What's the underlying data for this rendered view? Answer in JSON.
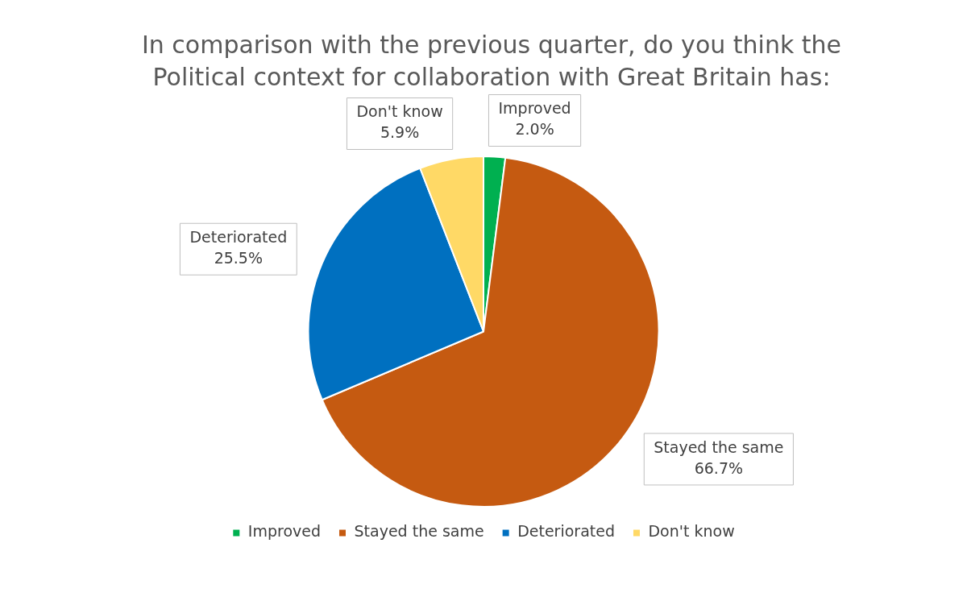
{
  "chart_data": {
    "type": "pie",
    "title": "In comparison with the previous quarter, do you think the Political context for collaboration with Great Britain has:",
    "categories": [
      "Improved",
      "Stayed the same",
      "Deteriorated",
      "Don't know"
    ],
    "values": [
      2.0,
      66.7,
      25.5,
      5.9
    ],
    "value_labels": [
      "2.0%",
      "66.7%",
      "25.5%",
      "5.9%"
    ],
    "colors": [
      "#00b050",
      "#c55a11",
      "#0070c0",
      "#ffd966"
    ],
    "legend": "bottom"
  }
}
